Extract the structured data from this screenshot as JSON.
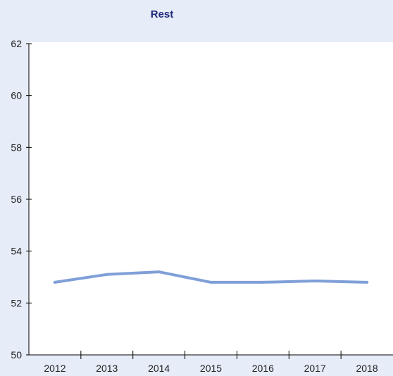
{
  "chart_data": {
    "type": "line",
    "title": "Rest",
    "xlabel": "",
    "ylabel": "",
    "categories": [
      "2012",
      "2013",
      "2014",
      "2015",
      "2016",
      "2017",
      "2018"
    ],
    "series": [
      {
        "values": [
          52.8,
          53.1,
          53.2,
          52.8,
          52.8,
          52.85,
          52.8
        ],
        "color": "#7f9fd7"
      }
    ],
    "ylim": [
      50,
      62
    ],
    "yticks": [
      50,
      52,
      54,
      56,
      58,
      60,
      62
    ],
    "grid": false,
    "background_color": "#e6ecf8",
    "plot_background_color": "#ffffff",
    "title_color": "#1f2a7a"
  }
}
